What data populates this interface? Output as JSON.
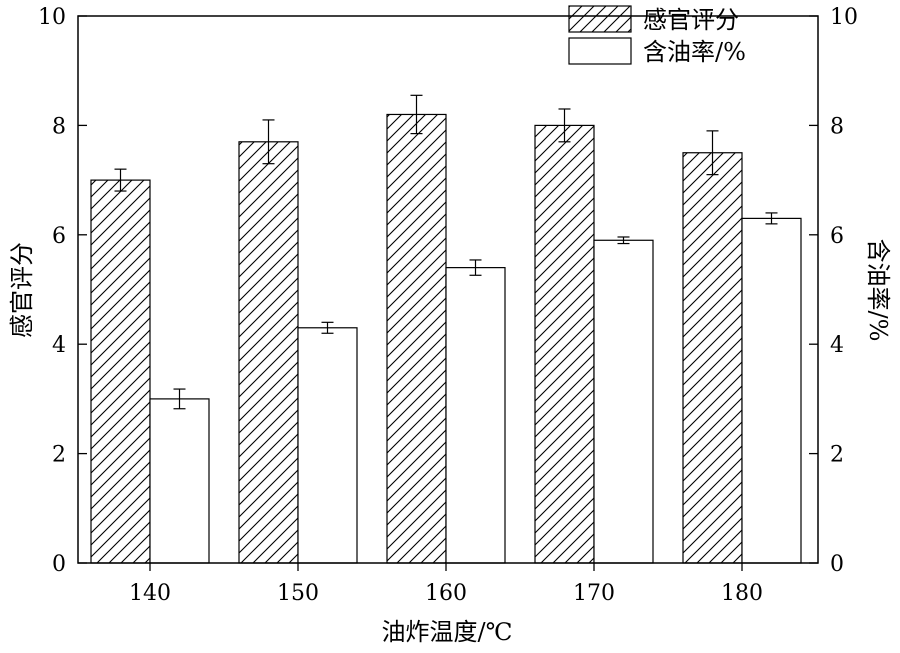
{
  "chart_data": {
    "type": "bar",
    "xlabel": "油炸温度/℃",
    "ylabel_left": "感官评分",
    "ylabel_right": "含油率/%",
    "categories": [
      "140",
      "150",
      "160",
      "170",
      "180"
    ],
    "ylim_left": [
      0,
      10
    ],
    "ylim_right": [
      0,
      10
    ],
    "y_ticks": [
      0,
      2,
      4,
      6,
      8,
      10
    ],
    "grid": false,
    "legend_position": "top-right",
    "series": [
      {
        "name": "感官评分",
        "axis": "left",
        "pattern": "diagonal-hatch",
        "values": [
          7.0,
          7.7,
          8.2,
          8.0,
          7.5
        ],
        "errors": [
          0.2,
          0.4,
          0.35,
          0.3,
          0.4
        ]
      },
      {
        "name": "含油率/%",
        "axis": "right",
        "pattern": "none",
        "values": [
          3.0,
          4.3,
          5.4,
          5.9,
          6.3
        ],
        "errors": [
          0.18,
          0.1,
          0.14,
          0.06,
          0.1
        ]
      }
    ]
  }
}
